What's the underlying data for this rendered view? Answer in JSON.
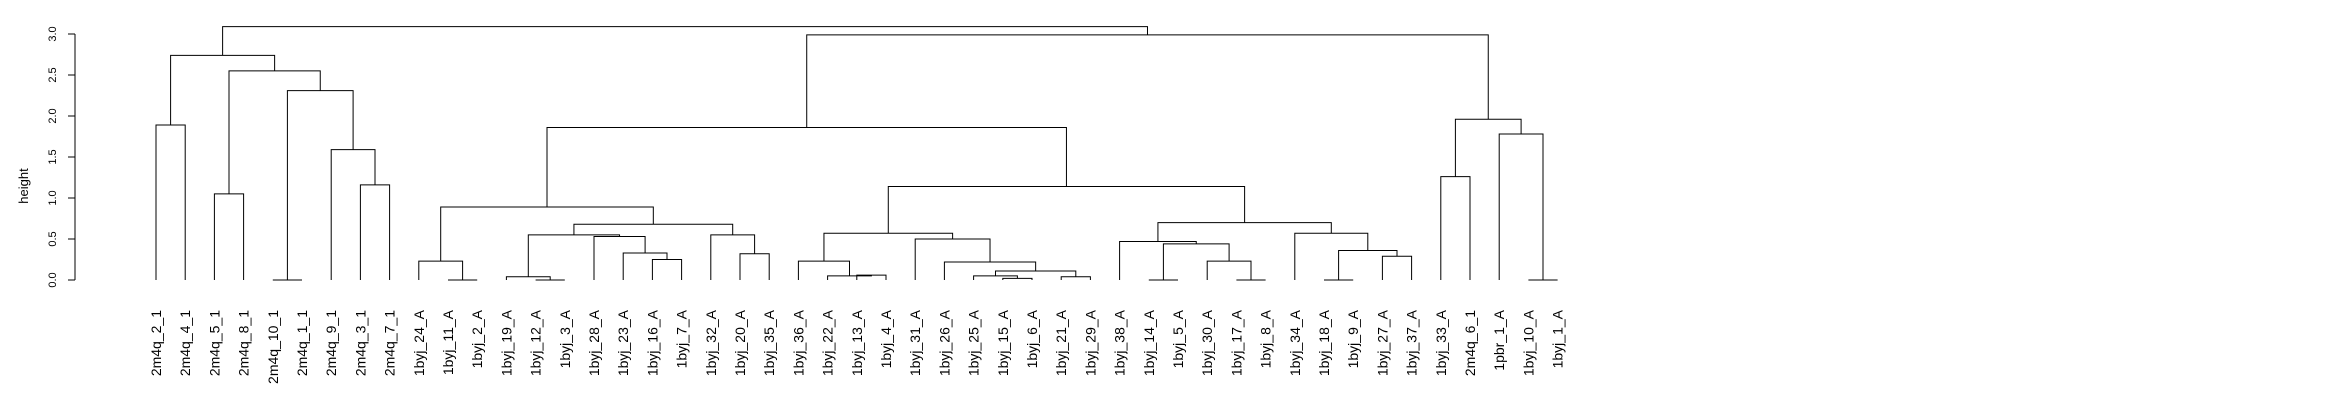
{
  "chart_data": {
    "type": "dendrogram",
    "title": "",
    "xlabel": "",
    "ylabel": "height",
    "ylim": [
      0,
      3.25
    ],
    "yticks": [
      0.0,
      0.5,
      1.0,
      1.5,
      2.0,
      2.5,
      3.0
    ],
    "ytick_labels": [
      "0.0",
      "0.5",
      "1.0",
      "1.5",
      "2.0",
      "2.5",
      "3.0"
    ],
    "grid": false,
    "leaves": [
      "2m4q_2_1",
      "2m4q_4_1",
      "2m4q_5_1",
      "2m4q_8_1",
      "2m4q_10_1",
      "2m4q_1_1",
      "2m4q_9_1",
      "2m4q_3_1",
      "2m4q_7_1",
      "1byj_24_A",
      "1byj_11_A",
      "1byj_2_A",
      "1byj_19_A",
      "1byj_12_A",
      "1byj_3_A",
      "1byj_28_A",
      "1byj_23_A",
      "1byj_16_A",
      "1byj_7_A",
      "1byj_32_A",
      "1byj_20_A",
      "1byj_35_A",
      "1byj_36_A",
      "1byj_22_A",
      "1byj_13_A",
      "1byj_4_A",
      "1byj_31_A",
      "1byj_26_A",
      "1byj_25_A",
      "1byj_15_A",
      "1byj_6_A",
      "1byj_21_A",
      "1byj_29_A",
      "1byj_38_A",
      "1byj_14_A",
      "1byj_5_A",
      "1byj_30_A",
      "1byj_17_A",
      "1byj_8_A",
      "1byj_34_A",
      "1byj_18_A",
      "1byj_9_A",
      "1byj_27_A",
      "1byj_37_A",
      "1byj_33_A",
      "2m4q_6_1",
      "1pbr_1_A",
      "1byj_10_A",
      "1byj_1_A"
    ],
    "merges": [
      {
        "id": "n01",
        "left": "2m4q_2_1",
        "right": "2m4q_4_1",
        "height": 1.89
      },
      {
        "id": "n02",
        "left": "2m4q_5_1",
        "right": "2m4q_8_1",
        "height": 1.05
      },
      {
        "id": "n03",
        "left": "2m4q_10_1",
        "right": "2m4q_1_1",
        "height": 0.0
      },
      {
        "id": "n04",
        "left": "2m4q_3_1",
        "right": "2m4q_7_1",
        "height": 1.16
      },
      {
        "id": "n05",
        "left": "2m4q_9_1",
        "right": "n04",
        "height": 1.59
      },
      {
        "id": "n06",
        "left": "n03",
        "right": "n05",
        "height": 2.31
      },
      {
        "id": "n07",
        "left": "n02",
        "right": "n06",
        "height": 2.55
      },
      {
        "id": "n08",
        "left": "n01",
        "right": "n07",
        "height": 2.74
      },
      {
        "id": "n09",
        "left": "1byj_11_A",
        "right": "1byj_2_A",
        "height": 0.0
      },
      {
        "id": "n10",
        "left": "1byj_24_A",
        "right": "n09",
        "height": 0.23
      },
      {
        "id": "n11",
        "left": "1byj_12_A",
        "right": "1byj_3_A",
        "height": 0.0
      },
      {
        "id": "n12",
        "left": "1byj_19_A",
        "right": "n11",
        "height": 0.04
      },
      {
        "id": "n13",
        "left": "1byj_16_A",
        "right": "1byj_7_A",
        "height": 0.25
      },
      {
        "id": "n14",
        "left": "1byj_23_A",
        "right": "n13",
        "height": 0.33
      },
      {
        "id": "n15",
        "left": "1byj_28_A",
        "right": "n14",
        "height": 0.53
      },
      {
        "id": "n16",
        "left": "n12",
        "right": "n15",
        "height": 0.55
      },
      {
        "id": "n17",
        "left": "1byj_20_A",
        "right": "1byj_35_A",
        "height": 0.32
      },
      {
        "id": "n18",
        "left": "1byj_32_A",
        "right": "n17",
        "height": 0.55
      },
      {
        "id": "n19",
        "left": "n16",
        "right": "n18",
        "height": 0.68
      },
      {
        "id": "n20",
        "left": "n10",
        "right": "n19",
        "height": 0.89
      },
      {
        "id": "n21",
        "left": "1byj_13_A",
        "right": "1byj_4_A",
        "height": 0.06
      },
      {
        "id": "n22",
        "left": "1byj_22_A",
        "right": "n21",
        "height": 0.05
      },
      {
        "id": "n23",
        "left": "1byj_36_A",
        "right": "n22",
        "height": 0.23
      },
      {
        "id": "n24",
        "left": "1byj_15_A",
        "right": "1byj_6_A",
        "height": 0.02
      },
      {
        "id": "n25",
        "left": "1byj_25_A",
        "right": "n24",
        "height": 0.05
      },
      {
        "id": "n26",
        "left": "1byj_21_A",
        "right": "1byj_29_A",
        "height": 0.04
      },
      {
        "id": "n27",
        "left": "n25",
        "right": "n26",
        "height": 0.11
      },
      {
        "id": "n28",
        "left": "1byj_26_A",
        "right": "n27",
        "height": 0.22
      },
      {
        "id": "n29",
        "left": "1byj_31_A",
        "right": "n28",
        "height": 0.5
      },
      {
        "id": "n30",
        "left": "n23",
        "right": "n29",
        "height": 0.57
      },
      {
        "id": "n31",
        "left": "1byj_14_A",
        "right": "1byj_5_A",
        "height": 0.0
      },
      {
        "id": "n32",
        "left": "1byj_17_A",
        "right": "1byj_8_A",
        "height": 0.0
      },
      {
        "id": "n33",
        "left": "1byj_30_A",
        "right": "n32",
        "height": 0.23
      },
      {
        "id": "n34",
        "left": "n31",
        "right": "n33",
        "height": 0.44
      },
      {
        "id": "n35",
        "left": "1byj_38_A",
        "right": "n34",
        "height": 0.47
      },
      {
        "id": "n36",
        "left": "1byj_18_A",
        "right": "1byj_9_A",
        "height": 0.0
      },
      {
        "id": "n37",
        "left": "1byj_27_A",
        "right": "1byj_37_A",
        "height": 0.29
      },
      {
        "id": "n38",
        "left": "n36",
        "right": "n37",
        "height": 0.36
      },
      {
        "id": "n39",
        "left": "1byj_34_A",
        "right": "n38",
        "height": 0.57
      },
      {
        "id": "n40",
        "left": "n35",
        "right": "n39",
        "height": 0.7
      },
      {
        "id": "n41",
        "left": "n30",
        "right": "n40",
        "height": 1.14
      },
      {
        "id": "n42",
        "left": "n20",
        "right": "n41",
        "height": 1.86
      },
      {
        "id": "n43",
        "left": "1byj_33_A",
        "right": "2m4q_6_1",
        "height": 1.26
      },
      {
        "id": "n44",
        "left": "1byj_10_A",
        "right": "1byj_1_A",
        "height": 0.0
      },
      {
        "id": "n45",
        "left": "1pbr_1_A",
        "right": "n44",
        "height": 1.78
      },
      {
        "id": "n46",
        "left": "n43",
        "right": "n45",
        "height": 1.96
      },
      {
        "id": "n47",
        "left": "n42",
        "right": "n46",
        "height": 2.99
      },
      {
        "id": "n48",
        "left": "n08",
        "right": "n47",
        "height": 3.09
      }
    ]
  }
}
